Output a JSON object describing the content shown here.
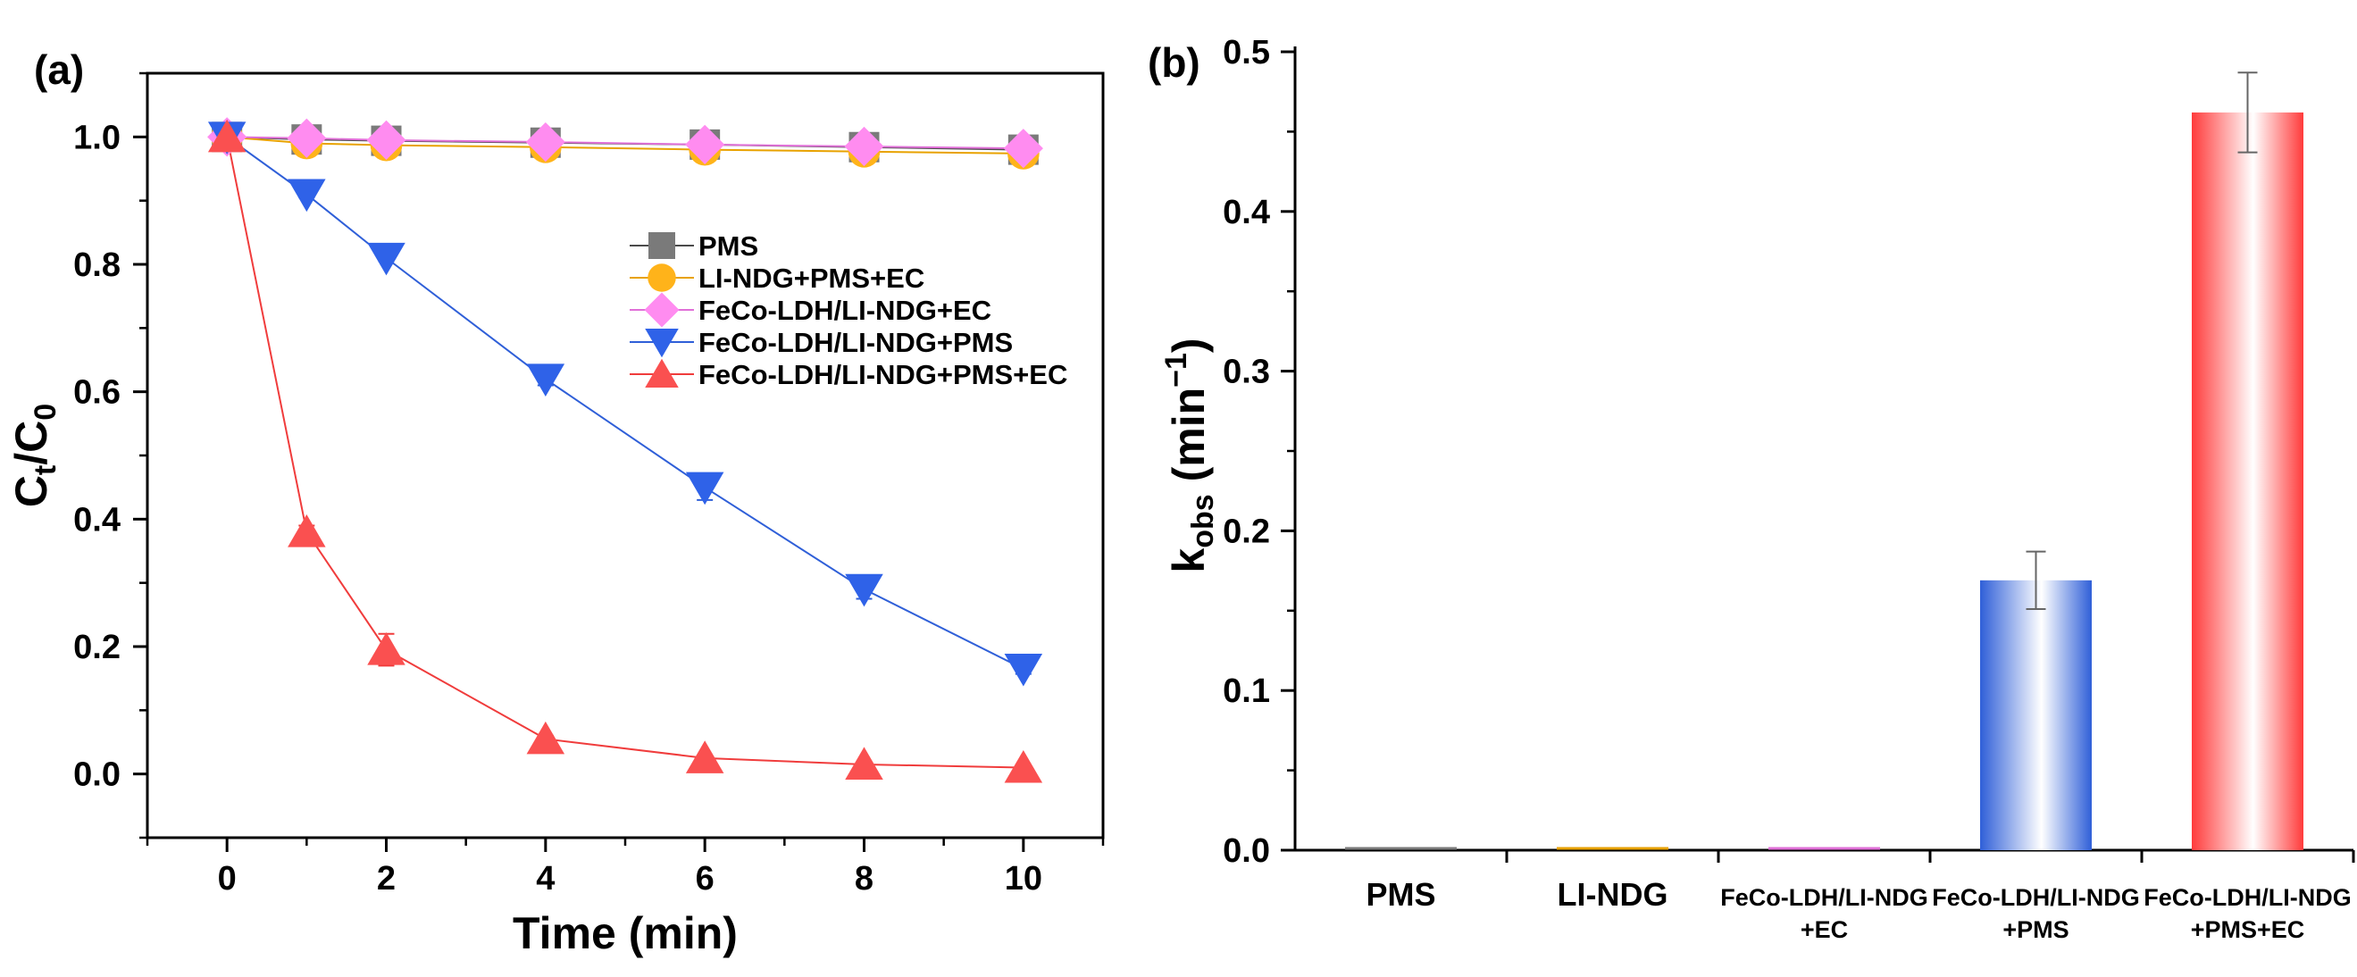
{
  "chart_data": [
    {
      "panel_label": "(a)",
      "type": "line",
      "xlabel": "Time (min)",
      "ylabel": {
        "base": "C",
        "sub1": "t",
        "mid": "/C",
        "sub2": "0"
      },
      "xlim": [
        -1,
        11
      ],
      "ylim": [
        -0.1,
        1.1
      ],
      "x_ticks": [
        0,
        2,
        4,
        6,
        8,
        10
      ],
      "y_ticks": [
        "0.0",
        "0.2",
        "0.4",
        "0.6",
        "0.8",
        "1.0"
      ],
      "x": [
        0,
        1,
        2,
        4,
        6,
        8,
        10
      ],
      "legend_position": "center-right",
      "series": [
        {
          "name": "PMS",
          "marker": "square",
          "color": "#7a7a7a",
          "line_color": "#4a4a4a",
          "values": [
            1.0,
            0.996,
            0.994,
            0.991,
            0.988,
            0.984,
            0.98
          ],
          "errors": [
            0,
            0,
            0,
            0,
            0,
            0,
            0
          ]
        },
        {
          "name": "LI-NDG+PMS+EC",
          "marker": "circle",
          "color": "#ffb31a",
          "line_color": "#e8a200",
          "values": [
            1.0,
            0.99,
            0.987,
            0.984,
            0.98,
            0.977,
            0.974
          ],
          "errors": [
            0,
            0,
            0,
            0,
            0,
            0,
            0
          ]
        },
        {
          "name": "FeCo-LDH/LI-NDG+EC",
          "marker": "diamond",
          "color": "#ff8cf0",
          "line_color": "#e070d8",
          "values": [
            1.0,
            0.998,
            0.995,
            0.992,
            0.988,
            0.985,
            0.982
          ],
          "errors": [
            0,
            0,
            0,
            0,
            0,
            0,
            0
          ]
        },
        {
          "name": "FeCo-LDH/LI-NDG+PMS",
          "marker": "triangle-down",
          "color": "#2f62e8",
          "line_color": "#2f5fd8",
          "values": [
            1.0,
            0.91,
            0.81,
            0.62,
            0.45,
            0.29,
            0.165
          ],
          "errors": [
            0,
            0.005,
            0.005,
            0.01,
            0.02,
            0.015,
            0.008
          ]
        },
        {
          "name": "FeCo-LDH/LI-NDG+PMS+EC",
          "marker": "triangle-up",
          "color": "#fa5050",
          "line_color": "#f03c3c",
          "values": [
            1.0,
            0.38,
            0.195,
            0.055,
            0.025,
            0.015,
            0.01
          ],
          "errors": [
            0,
            0.01,
            0.025,
            0.005,
            0.004,
            0.003,
            0.002
          ]
        }
      ]
    },
    {
      "panel_label": "(b)",
      "type": "bar",
      "ylabel": {
        "base": "k",
        "sub": "obs",
        "unit": " (min",
        "sup": "−1",
        "close": ")"
      },
      "ylim": [
        0,
        0.5
      ],
      "y_ticks": [
        "0.0",
        "0.1",
        "0.2",
        "0.3",
        "0.4",
        "0.5"
      ],
      "categories": [
        [
          "PMS"
        ],
        [
          "LI-NDG"
        ],
        [
          "FeCo-LDH/LI-NDG",
          "+EC"
        ],
        [
          "FeCo-LDH/LI-NDG",
          "+PMS"
        ],
        [
          "FeCo-LDH/LI-NDG",
          "+PMS+EC"
        ]
      ],
      "values": [
        0.002,
        0.002,
        0.002,
        0.169,
        0.462
      ],
      "errors": [
        0,
        0,
        0,
        0.018,
        0.025
      ],
      "colors": [
        "#7a7a7a",
        "#e8a200",
        "#e070d8",
        "#2f5fd8",
        "#ff3b3b"
      ]
    }
  ]
}
